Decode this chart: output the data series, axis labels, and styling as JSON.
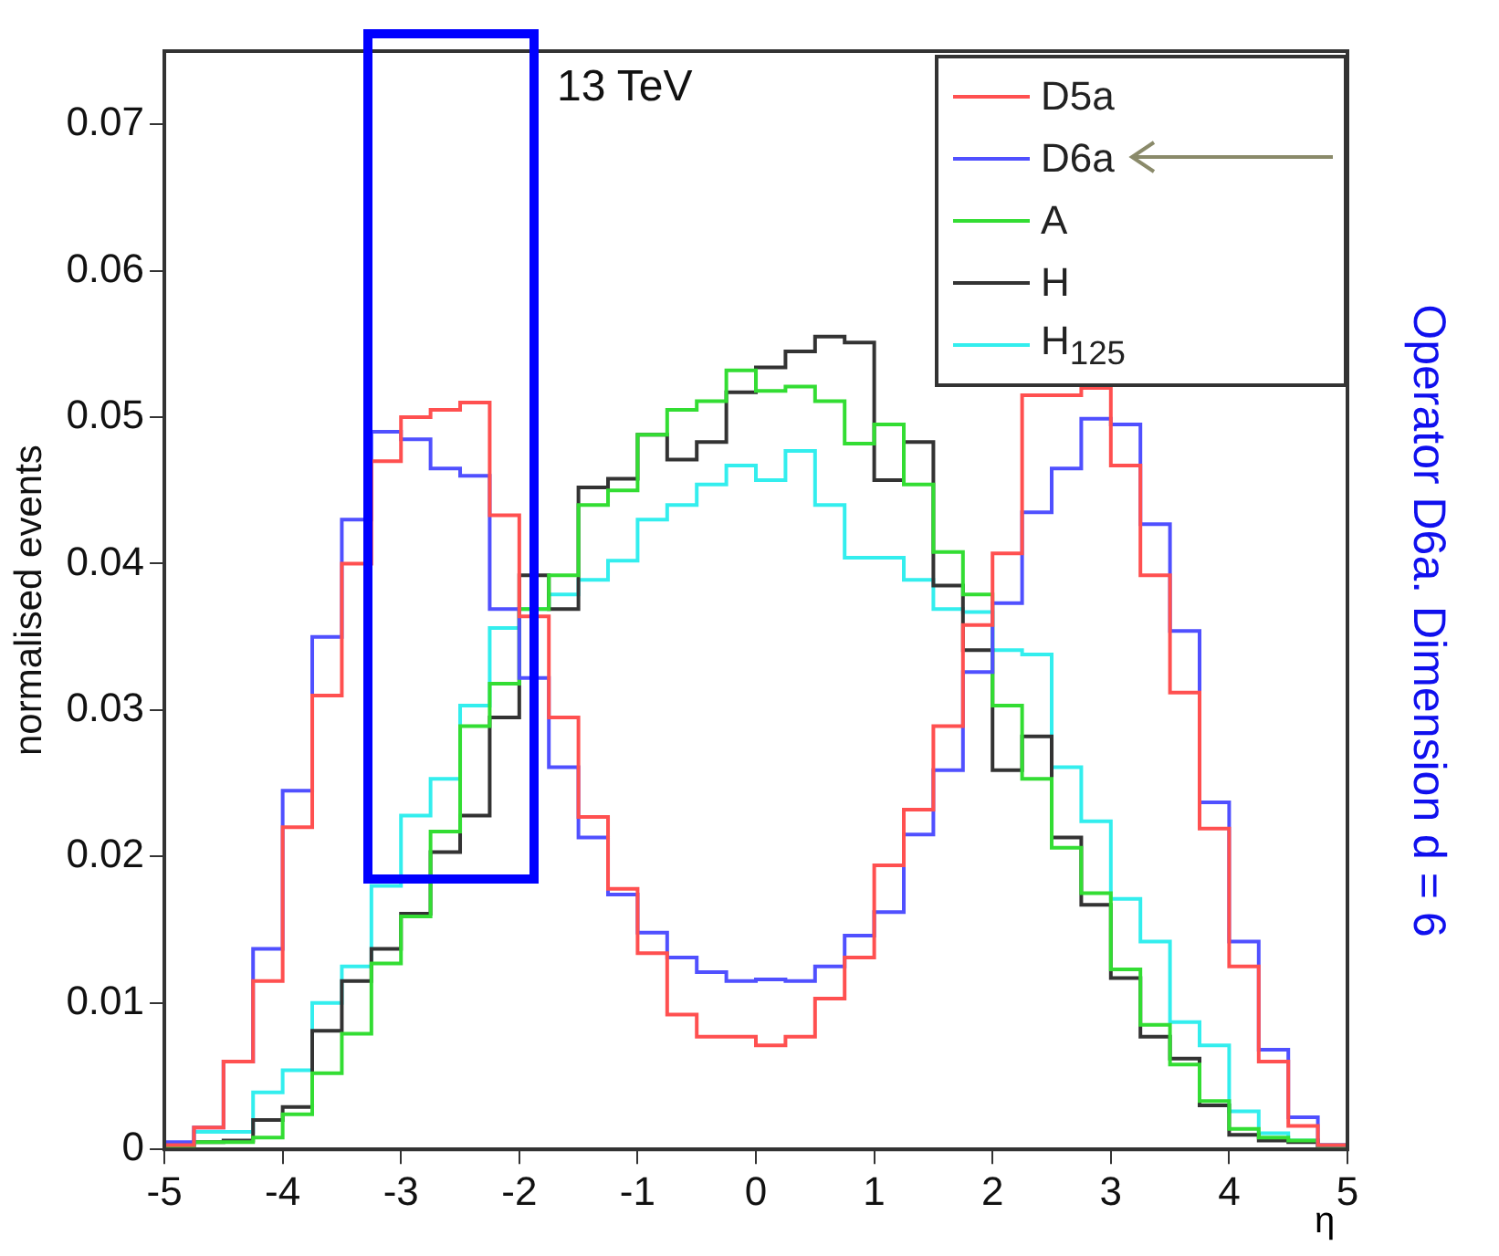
{
  "chart_data": {
    "type": "histogram",
    "xlabel": "η",
    "ylabel": "normalised events",
    "bins": [
      -5,
      -4.75,
      -4.5,
      -4.25,
      -4,
      -3.75,
      -3.5,
      -3.25,
      -3,
      -2.75,
      -2.5,
      -2.25,
      -2,
      -1.75,
      -1.5,
      -1.25,
      -1,
      -0.75,
      -0.5,
      -0.25,
      0,
      0.25,
      0.5,
      0.75,
      1,
      1.25,
      1.5,
      1.75,
      2,
      2.25,
      2.5,
      2.75,
      3,
      3.25,
      3.5,
      3.75,
      4,
      4.25,
      4.5,
      4.75,
      5
    ],
    "series": [
      {
        "name": "D5a",
        "color": "#ff5050",
        "values": [
          0.0003,
          0.0015,
          0.006,
          0.0115,
          0.022,
          0.031,
          0.04,
          0.047,
          0.05,
          0.0505,
          0.051,
          0.0433,
          0.0364,
          0.0295,
          0.0227,
          0.0178,
          0.0134,
          0.0092,
          0.0077,
          0.0077,
          0.0071,
          0.0077,
          0.0103,
          0.0131,
          0.0194,
          0.0232,
          0.0289,
          0.0358,
          0.0407,
          0.0515,
          0.0515,
          0.052,
          0.0467,
          0.0392,
          0.0312,
          0.0219,
          0.0125,
          0.006,
          0.0016,
          0.0003
        ]
      },
      {
        "name": "D6a",
        "color": "#5050ff",
        "values": [
          0.0005,
          0.0015,
          0.006,
          0.0137,
          0.0245,
          0.035,
          0.043,
          0.049,
          0.0485,
          0.0465,
          0.046,
          0.0369,
          0.0322,
          0.0261,
          0.0213,
          0.0174,
          0.0148,
          0.0131,
          0.0121,
          0.0115,
          0.0116,
          0.0115,
          0.0125,
          0.0146,
          0.0162,
          0.0215,
          0.0259,
          0.0326,
          0.0373,
          0.0435,
          0.0465,
          0.0499,
          0.0495,
          0.0427,
          0.0354,
          0.0237,
          0.0142,
          0.0068,
          0.0022,
          0.0003
        ]
      },
      {
        "name": "A",
        "color": "#33dd33",
        "values": [
          0.0002,
          0.0005,
          0.0005,
          0.0008,
          0.0024,
          0.0052,
          0.0079,
          0.0127,
          0.0159,
          0.0217,
          0.0289,
          0.0318,
          0.0369,
          0.0392,
          0.044,
          0.045,
          0.0488,
          0.0505,
          0.0511,
          0.0532,
          0.0518,
          0.0521,
          0.0511,
          0.0482,
          0.0495,
          0.0454,
          0.0408,
          0.0379,
          0.0303,
          0.0253,
          0.0206,
          0.0175,
          0.0123,
          0.0085,
          0.0058,
          0.0033,
          0.0014,
          0.0008,
          0.0006,
          0.0002
        ]
      },
      {
        "name": "H",
        "color": "#333333",
        "values": [
          0.0002,
          0.0005,
          0.0006,
          0.002,
          0.0029,
          0.0081,
          0.0115,
          0.0137,
          0.0161,
          0.0203,
          0.0228,
          0.0295,
          0.0392,
          0.0369,
          0.0452,
          0.0458,
          0.0488,
          0.0471,
          0.0483,
          0.0517,
          0.0534,
          0.0545,
          0.0555,
          0.0551,
          0.0457,
          0.0483,
          0.0385,
          0.0341,
          0.0259,
          0.0282,
          0.0213,
          0.0167,
          0.0117,
          0.0077,
          0.0062,
          0.003,
          0.001,
          0.0006,
          0.0005,
          0.0002
        ]
      },
      {
        "name": "H$_{125}$",
        "color": "#33eeee",
        "values": [
          0.0003,
          0.0012,
          0.0012,
          0.0039,
          0.0054,
          0.01,
          0.0125,
          0.018,
          0.0228,
          0.0253,
          0.0303,
          0.0356,
          0.0369,
          0.0379,
          0.0389,
          0.0402,
          0.043,
          0.044,
          0.0454,
          0.0467,
          0.0457,
          0.0477,
          0.044,
          0.0404,
          0.0404,
          0.0389,
          0.0369,
          0.0367,
          0.0341,
          0.0338,
          0.0261,
          0.0224,
          0.0171,
          0.0142,
          0.0087,
          0.0071,
          0.0026,
          0.0011,
          0.0006,
          0.0003
        ]
      }
    ],
    "xlim": [
      -5,
      5
    ],
    "xticks": [
      -5,
      -4,
      -3,
      -2,
      -1,
      0,
      1,
      2,
      3,
      4,
      5
    ],
    "ylim": [
      0,
      0.075
    ],
    "yticks": [
      0,
      0.01,
      0.02,
      0.03,
      0.04,
      0.05,
      0.06,
      0.07
    ],
    "grid": false,
    "legend": "top right",
    "annotations": [
      "13 TeV",
      "Operator D6a. Dimension d = 6"
    ]
  }
}
